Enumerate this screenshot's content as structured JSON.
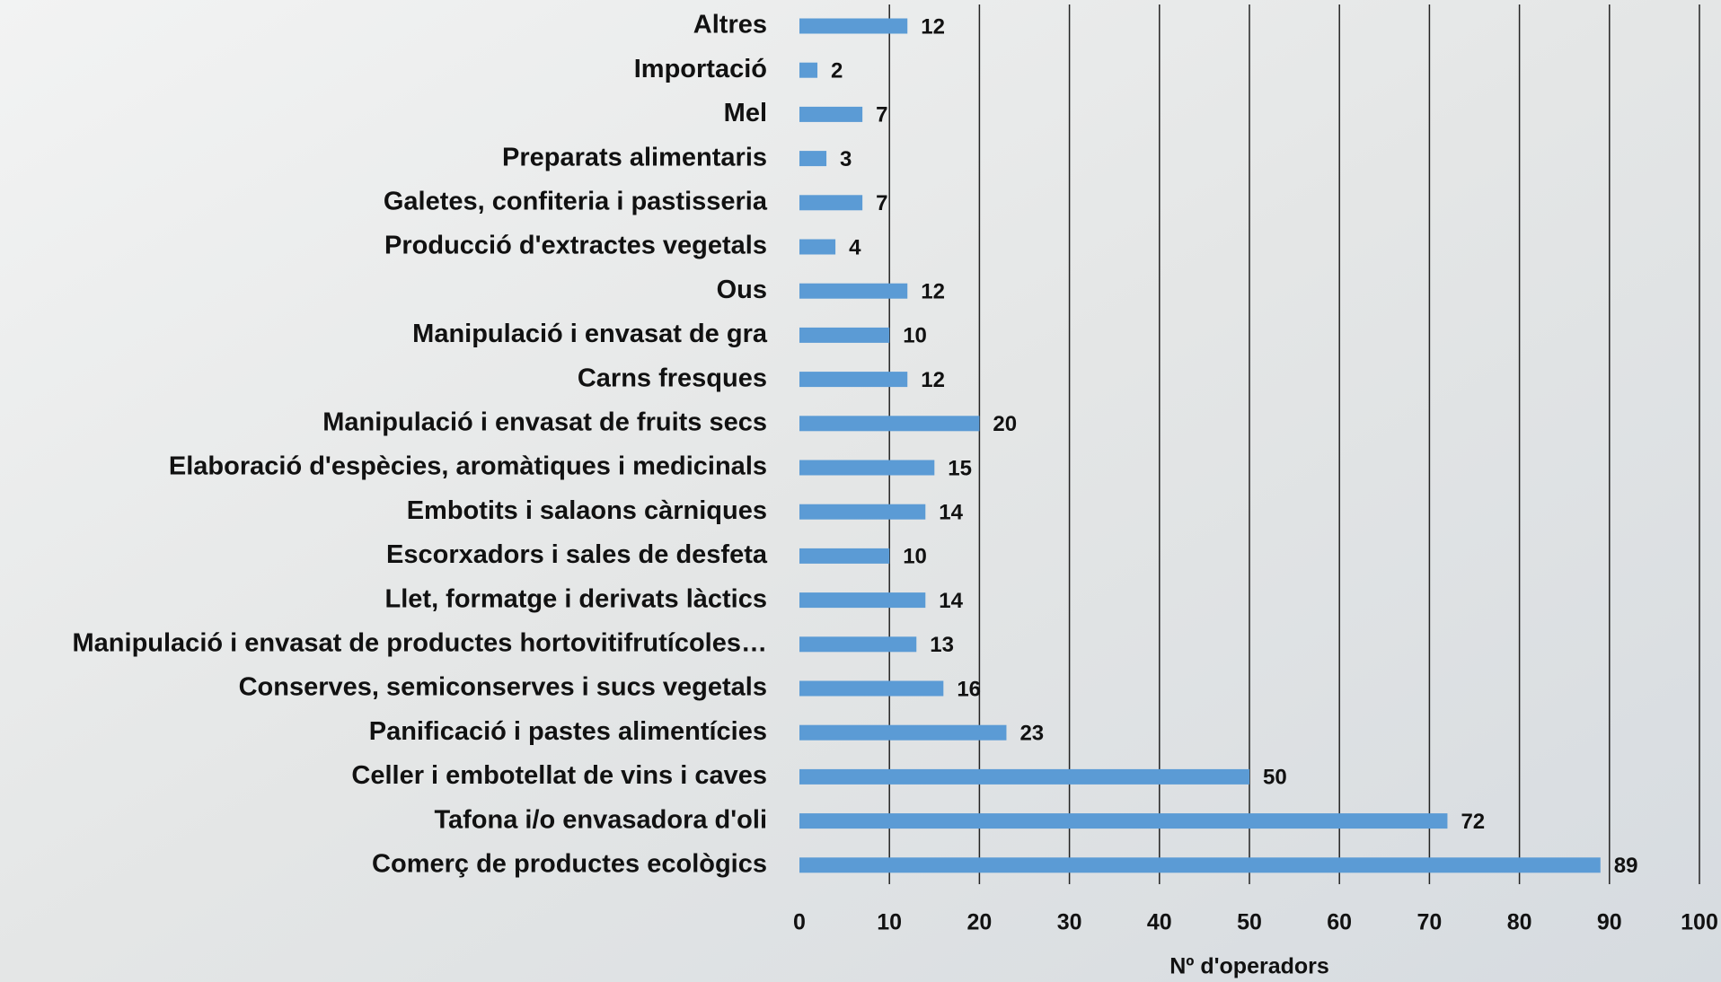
{
  "chart_data": {
    "type": "bar",
    "orientation": "horizontal",
    "categories": [
      "Altres",
      "Importació",
      "Mel",
      "Preparats alimentaris",
      "Galetes, confiteria i pastisseria",
      "Producció d'extractes vegetals",
      "Ous",
      "Manipulació i envasat de gra",
      "Carns fresques",
      "Manipulació i envasat de fruits secs",
      "Elaboració d'espècies, aromàtiques i medicinals",
      "Embotits i salaons càrniques",
      "Escorxadors i sales de desfeta",
      "Llet, formatge i derivats làctics",
      "Manipulació i envasat de productes hortovitifrutícoles…",
      "Conserves, semiconserves i sucs vegetals",
      "Panificació i pastes alimentícies",
      "Celler i embotellat de vins i caves",
      "Tafona i/o envasadora d'oli",
      "Comerç de productes ecològics"
    ],
    "values": [
      12,
      2,
      7,
      3,
      7,
      4,
      12,
      10,
      12,
      20,
      15,
      14,
      10,
      14,
      13,
      16,
      23,
      50,
      72,
      89
    ],
    "color": "#5b9bd5",
    "xlabel": "Nº d'operadors",
    "xlim": [
      0,
      100
    ],
    "xticks": [
      0,
      10,
      20,
      30,
      40,
      50,
      60,
      70,
      80,
      90,
      100
    ],
    "grid": true
  }
}
